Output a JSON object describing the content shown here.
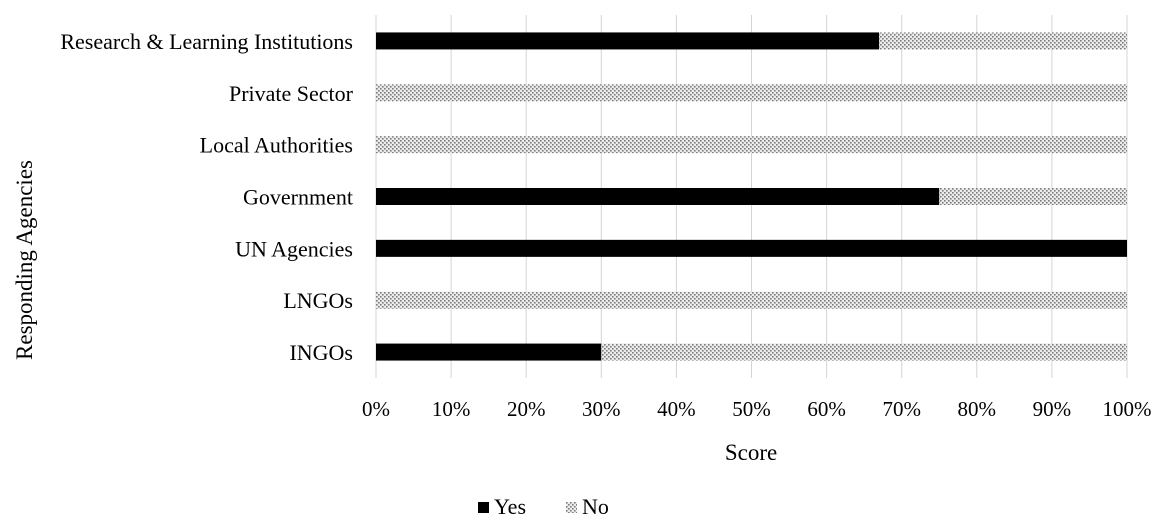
{
  "chart_data": {
    "type": "bar",
    "orientation": "horizontal",
    "stacked": "100%",
    "categories": [
      "Research & Learning Institutions",
      "Private Sector",
      "Local Authorities",
      "Government",
      "UN Agencies",
      "LNGOs",
      "INGOs"
    ],
    "series": [
      {
        "name": "Yes",
        "values": [
          67,
          0,
          0,
          75,
          100,
          0,
          30
        ],
        "color": "#000000",
        "pattern": "solid"
      },
      {
        "name": "No",
        "values": [
          33,
          100,
          100,
          25,
          0,
          100,
          70
        ],
        "color": "#9a9a9a",
        "pattern": "dotted"
      }
    ],
    "xlabel": "Score",
    "ylabel": "Responding Agencies",
    "xlim": [
      0,
      100
    ],
    "xticks": [
      "0%",
      "10%",
      "20%",
      "30%",
      "40%",
      "50%",
      "60%",
      "70%",
      "80%",
      "90%",
      "100%"
    ],
    "grid": "vertical",
    "legend": "bottom"
  }
}
